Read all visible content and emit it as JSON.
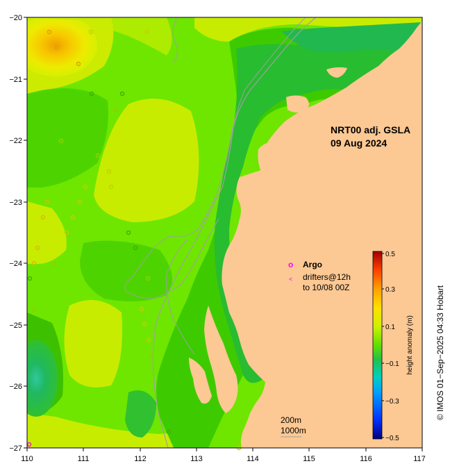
{
  "title": {
    "line1": "NRT00 adj. GSLA",
    "line2": "09 Aug 2024"
  },
  "axes": {
    "x_ticks": [
      "110",
      "111",
      "112",
      "113",
      "114",
      "115",
      "116",
      "117"
    ],
    "y_ticks": [
      "−20",
      "−21",
      "−22",
      "−23",
      "−24",
      "−25",
      "−26",
      "−27"
    ],
    "lon_range": [
      110,
      117
    ],
    "lat_range": [
      -27,
      -20
    ]
  },
  "legend": {
    "argo_symbol": "o",
    "argo_label": "Argo",
    "drifter_symbol": "<",
    "drifter_label_1": "drifters@12h",
    "drifter_label_2": "to 10/08 00Z"
  },
  "colorbar": {
    "label": "height anomaly (m)",
    "ticks": [
      "0.5",
      "0.3",
      "0.1",
      "−0.1",
      "−0.3",
      "−0.5"
    ],
    "range": [
      -0.5,
      0.5
    ]
  },
  "contours": {
    "label_1": "200m",
    "label_2": "1000m"
  },
  "credit": "© IMOS 01−Sep−2025 04:33 Hobart",
  "colors": {
    "land": "#fcc893",
    "sea_base": "#6fe800",
    "low_anomaly": "#22c040",
    "high_anomaly": "#f0a800",
    "argo": "#ff00ff"
  }
}
